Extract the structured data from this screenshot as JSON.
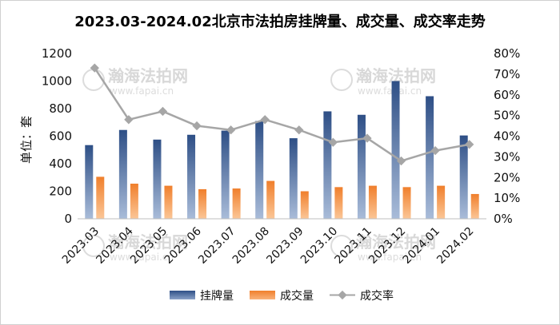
{
  "title": "2023.03-2024.02北京市法拍房挂牌量、成交量、成交率走势",
  "watermark": {
    "name": "瀚海法拍网",
    "url": "www.fapai.cn"
  },
  "chart_data": {
    "type": "bar",
    "title": "2023.03-2024.02北京市法拍房挂牌量、成交量、成交率走势",
    "categories": [
      "2023.03",
      "2023.04",
      "2023.05",
      "2023.06",
      "2023.07",
      "2023.08",
      "2023.09",
      "2023.10",
      "2023.11",
      "2023.12",
      "2024.01",
      "2024.02"
    ],
    "ylabel": "单位：套",
    "ylim": [
      0,
      1200
    ],
    "yticks": [
      "0",
      "200",
      "400",
      "600",
      "800",
      "1000",
      "1200"
    ],
    "y2lim": [
      0,
      80
    ],
    "y2ticks": [
      "0%",
      "10%",
      "20%",
      "30%",
      "40%",
      "50%",
      "60%",
      "70%",
      "80%"
    ],
    "grid": false,
    "legend_position": "bottom",
    "series": [
      {
        "name": "挂牌量",
        "type": "bar",
        "axis": "left",
        "color": "#3f5f94",
        "values": [
          535,
          645,
          575,
          610,
          640,
          710,
          585,
          780,
          755,
          1000,
          890,
          605
        ]
      },
      {
        "name": "成交量",
        "type": "bar",
        "axis": "left",
        "color": "#f4883a",
        "values": [
          305,
          255,
          240,
          215,
          220,
          275,
          200,
          230,
          240,
          230,
          240,
          180
        ]
      },
      {
        "name": "成交率",
        "type": "line",
        "axis": "right",
        "color": "#a6a6a6",
        "values": [
          73,
          48,
          52,
          45,
          43,
          48,
          43,
          37,
          39,
          28,
          33,
          36
        ]
      }
    ]
  }
}
